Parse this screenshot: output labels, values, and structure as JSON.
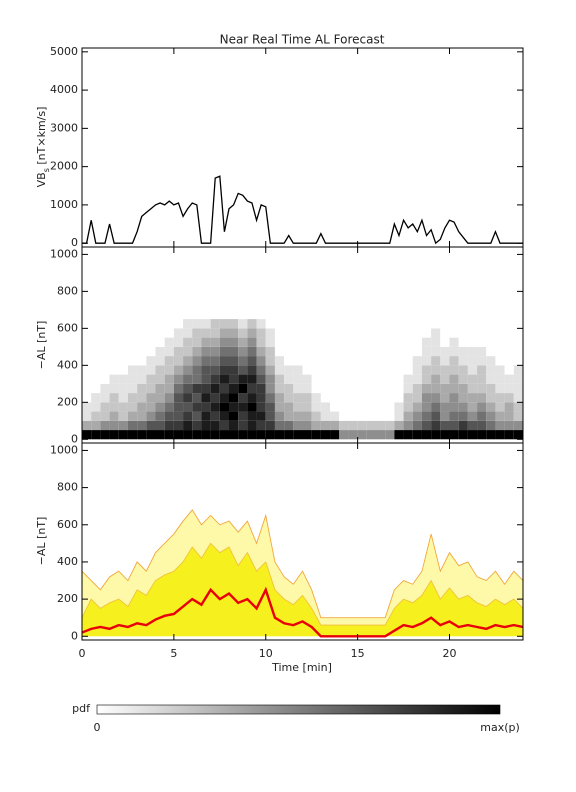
{
  "chart_data": [
    {
      "type": "line",
      "title": "Near Real Time AL Forecast",
      "ylabel": {
        "main": "VB",
        "sub": "s",
        "rest": " [nT×km/s]"
      },
      "color": "#000000",
      "xlim": [
        0,
        24
      ],
      "ylim": [
        -100,
        5100
      ],
      "yticks": [
        0,
        1000,
        2000,
        3000,
        4000,
        5000
      ],
      "x": [
        0,
        0.25,
        0.5,
        0.75,
        1,
        1.25,
        1.5,
        1.75,
        2,
        2.25,
        2.5,
        2.75,
        3,
        3.25,
        3.5,
        3.75,
        4,
        4.25,
        4.5,
        4.75,
        5,
        5.25,
        5.5,
        5.75,
        6,
        6.25,
        6.5,
        6.75,
        7,
        7.25,
        7.5,
        7.75,
        8,
        8.25,
        8.5,
        8.75,
        9,
        9.25,
        9.5,
        9.75,
        10,
        10.25,
        10.5,
        10.75,
        11,
        11.25,
        11.5,
        11.75,
        12,
        12.25,
        12.5,
        12.75,
        13,
        13.25,
        13.5,
        13.75,
        14,
        14.25,
        14.5,
        14.75,
        15,
        15.25,
        15.5,
        15.75,
        16,
        16.25,
        16.5,
        16.75,
        17,
        17.25,
        17.5,
        17.75,
        18,
        18.25,
        18.5,
        18.75,
        19,
        19.25,
        19.5,
        19.75,
        20,
        20.25,
        20.5,
        20.75,
        21,
        21.25,
        21.5,
        21.75,
        22,
        22.25,
        22.5,
        22.75,
        23,
        23.25,
        23.5,
        23.75,
        24
      ],
      "values": [
        0,
        0,
        600,
        0,
        0,
        0,
        500,
        0,
        0,
        0,
        0,
        0,
        300,
        700,
        800,
        900,
        1000,
        1050,
        1000,
        1100,
        1000,
        1050,
        700,
        900,
        1050,
        1000,
        0,
        0,
        0,
        1700,
        1750,
        300,
        900,
        1000,
        1300,
        1250,
        1100,
        1050,
        600,
        1000,
        950,
        0,
        0,
        0,
        0,
        200,
        0,
        0,
        0,
        0,
        0,
        0,
        250,
        0,
        0,
        0,
        0,
        0,
        0,
        0,
        0,
        0,
        0,
        0,
        0,
        0,
        0,
        0,
        500,
        200,
        600,
        400,
        500,
        300,
        600,
        200,
        350,
        0,
        100,
        400,
        600,
        550,
        300,
        150,
        0,
        0,
        0,
        0,
        0,
        0,
        300,
        0,
        0,
        0,
        0,
        0,
        0
      ]
    },
    {
      "type": "heatmap",
      "ylabel": "−AL [nT]",
      "colormap": "gray-reversed",
      "xlim": [
        0,
        24
      ],
      "ylim": [
        -20,
        1040
      ],
      "yticks": [
        0,
        200,
        400,
        600,
        800,
        1000
      ],
      "xbins": [
        0,
        0.5,
        1,
        1.5,
        2,
        2.5,
        3,
        3.5,
        4,
        4.5,
        5,
        5.5,
        6,
        6.5,
        7,
        7.5,
        8,
        8.5,
        9,
        9.5,
        10,
        10.5,
        11,
        11.5,
        12,
        12.5,
        13,
        13.5,
        14,
        14.5,
        15,
        15.5,
        16,
        16.5,
        17,
        17.5,
        18,
        18.5,
        19,
        19.5,
        20,
        20.5,
        21,
        21.5,
        22,
        22.5,
        23,
        23.5,
        24
      ],
      "ybins": [
        0,
        50,
        100,
        150,
        200,
        250,
        300,
        350,
        400,
        450,
        500,
        550,
        600,
        650
      ],
      "z": [
        [
          9,
          9,
          9,
          9,
          9,
          9,
          9,
          9,
          9,
          9,
          9,
          9,
          9,
          9,
          9,
          9,
          9,
          9,
          9,
          9,
          9,
          9,
          9,
          9,
          9,
          9,
          9,
          9,
          4,
          4,
          4,
          4,
          4,
          4,
          9,
          9,
          9,
          9,
          9,
          9,
          9,
          9,
          9,
          9,
          9,
          9,
          9,
          9
        ],
        [
          3,
          3,
          4,
          4,
          4,
          5,
          5,
          6,
          6,
          7,
          7,
          8,
          7,
          8,
          8,
          7,
          8,
          7,
          8,
          7,
          7,
          5,
          5,
          4,
          4,
          3,
          3,
          3,
          2,
          2,
          2,
          2,
          2,
          2,
          3,
          4,
          5,
          6,
          7,
          6,
          6,
          7,
          6,
          6,
          5,
          4,
          4,
          4
        ],
        [
          1,
          2,
          2,
          3,
          2,
          3,
          3,
          4,
          5,
          6,
          6,
          7,
          6,
          8,
          7,
          8,
          9,
          7,
          8,
          8,
          6,
          4,
          3,
          3,
          3,
          2,
          1,
          1,
          0,
          0,
          0,
          0,
          0,
          0,
          1,
          3,
          4,
          5,
          6,
          4,
          5,
          5,
          4,
          5,
          4,
          3,
          3,
          2
        ],
        [
          1,
          1,
          2,
          2,
          2,
          2,
          3,
          3,
          4,
          5,
          6,
          6,
          7,
          7,
          8,
          9,
          8,
          8,
          9,
          7,
          6,
          3,
          3,
          2,
          2,
          1,
          1,
          0,
          0,
          0,
          0,
          0,
          0,
          0,
          1,
          2,
          3,
          4,
          5,
          4,
          4,
          4,
          3,
          4,
          3,
          2,
          3,
          2
        ],
        [
          0,
          1,
          1,
          2,
          1,
          2,
          2,
          3,
          3,
          4,
          6,
          7,
          6,
          8,
          7,
          8,
          9,
          7,
          8,
          7,
          5,
          3,
          2,
          2,
          2,
          1,
          0,
          0,
          0,
          0,
          0,
          0,
          0,
          0,
          0,
          2,
          2,
          4,
          4,
          3,
          4,
          3,
          3,
          3,
          2,
          2,
          2,
          1
        ],
        [
          0,
          0,
          1,
          1,
          1,
          1,
          2,
          2,
          3,
          3,
          5,
          6,
          7,
          7,
          8,
          7,
          8,
          9,
          7,
          7,
          4,
          2,
          2,
          1,
          1,
          0,
          0,
          0,
          0,
          0,
          0,
          0,
          0,
          0,
          0,
          1,
          2,
          3,
          3,
          3,
          3,
          3,
          2,
          2,
          2,
          1,
          1,
          1
        ],
        [
          0,
          0,
          0,
          1,
          1,
          1,
          1,
          2,
          2,
          3,
          4,
          5,
          5,
          6,
          7,
          8,
          7,
          8,
          8,
          6,
          4,
          2,
          1,
          1,
          1,
          0,
          0,
          0,
          0,
          0,
          0,
          0,
          0,
          0,
          0,
          1,
          1,
          2,
          3,
          2,
          3,
          2,
          2,
          2,
          1,
          1,
          1,
          1
        ],
        [
          0,
          0,
          0,
          0,
          0,
          1,
          1,
          1,
          2,
          2,
          3,
          4,
          5,
          6,
          6,
          7,
          7,
          6,
          7,
          5,
          3,
          1,
          1,
          1,
          0,
          0,
          0,
          0,
          0,
          0,
          0,
          0,
          0,
          0,
          0,
          0,
          1,
          2,
          2,
          2,
          2,
          2,
          1,
          2,
          1,
          1,
          0,
          1
        ],
        [
          0,
          0,
          0,
          0,
          0,
          0,
          0,
          1,
          1,
          2,
          2,
          3,
          4,
          5,
          5,
          6,
          6,
          5,
          6,
          4,
          2,
          1,
          0,
          0,
          0,
          0,
          0,
          0,
          0,
          0,
          0,
          0,
          0,
          0,
          0,
          0,
          1,
          1,
          2,
          1,
          2,
          1,
          1,
          1,
          1,
          0,
          0,
          0
        ],
        [
          0,
          0,
          0,
          0,
          0,
          0,
          0,
          0,
          1,
          1,
          2,
          2,
          3,
          4,
          4,
          5,
          5,
          4,
          5,
          3,
          2,
          0,
          0,
          0,
          0,
          0,
          0,
          0,
          0,
          0,
          0,
          0,
          0,
          0,
          0,
          0,
          0,
          1,
          1,
          1,
          1,
          1,
          1,
          1,
          0,
          0,
          0,
          0
        ],
        [
          0,
          0,
          0,
          0,
          0,
          0,
          0,
          0,
          0,
          1,
          1,
          2,
          2,
          3,
          3,
          4,
          4,
          3,
          4,
          2,
          1,
          0,
          0,
          0,
          0,
          0,
          0,
          0,
          0,
          0,
          0,
          0,
          0,
          0,
          0,
          0,
          0,
          1,
          1,
          0,
          1,
          0,
          0,
          0,
          0,
          0,
          0,
          0
        ],
        [
          0,
          0,
          0,
          0,
          0,
          0,
          0,
          0,
          0,
          0,
          1,
          1,
          2,
          2,
          2,
          3,
          3,
          2,
          3,
          2,
          1,
          0,
          0,
          0,
          0,
          0,
          0,
          0,
          0,
          0,
          0,
          0,
          0,
          0,
          0,
          0,
          0,
          0,
          1,
          0,
          0,
          0,
          0,
          0,
          0,
          0,
          0,
          0
        ],
        [
          0,
          0,
          0,
          0,
          0,
          0,
          0,
          0,
          0,
          0,
          0,
          1,
          1,
          1,
          2,
          2,
          2,
          1,
          2,
          1,
          0,
          0,
          0,
          0,
          0,
          0,
          0,
          0,
          0,
          0,
          0,
          0,
          0,
          0,
          0,
          0,
          0,
          0,
          0,
          0,
          0,
          0,
          0,
          0,
          0,
          0,
          0,
          0
        ]
      ]
    },
    {
      "type": "band",
      "ylabel": "−AL [nT]",
      "xlabel": "Time [min]",
      "xlim": [
        0,
        24
      ],
      "xticks": [
        0,
        5,
        10,
        15,
        20
      ],
      "ylim": [
        -20,
        1040
      ],
      "yticks": [
        0,
        200,
        400,
        600,
        800,
        1000
      ],
      "x": [
        0,
        0.5,
        1,
        1.5,
        2,
        2.5,
        3,
        3.5,
        4,
        4.5,
        5,
        5.5,
        6,
        6.5,
        7,
        7.5,
        8,
        8.5,
        9,
        9.5,
        10,
        10.5,
        11,
        11.5,
        12,
        12.5,
        13,
        13.5,
        14,
        14.5,
        15,
        15.5,
        16,
        16.5,
        17,
        17.5,
        18,
        18.5,
        19,
        19.5,
        20,
        20.5,
        21,
        21.5,
        22,
        22.5,
        23,
        23.5,
        24
      ],
      "series": [
        {
          "color": "#fdf9a8",
          "edge_color": "#f2a63a",
          "values": [
            350,
            300,
            250,
            320,
            350,
            300,
            400,
            350,
            450,
            500,
            550,
            620,
            680,
            600,
            650,
            600,
            620,
            560,
            620,
            500,
            650,
            400,
            320,
            280,
            350,
            250,
            100,
            100,
            100,
            100,
            100,
            100,
            100,
            100,
            250,
            300,
            280,
            350,
            550,
            350,
            450,
            380,
            400,
            320,
            300,
            350,
            280,
            350,
            300
          ]
        },
        {
          "color": "#f6f01e",
          "edge_color": "#f2c23a",
          "values": [
            100,
            200,
            150,
            180,
            200,
            160,
            250,
            220,
            300,
            330,
            350,
            400,
            480,
            420,
            500,
            450,
            480,
            380,
            450,
            350,
            400,
            250,
            200,
            170,
            220,
            150,
            60,
            60,
            60,
            60,
            60,
            60,
            60,
            60,
            150,
            200,
            180,
            220,
            300,
            200,
            260,
            200,
            220,
            180,
            160,
            200,
            170,
            200,
            150
          ]
        },
        {
          "color": "#e8000b",
          "values": [
            20,
            40,
            50,
            40,
            60,
            50,
            70,
            60,
            90,
            110,
            120,
            160,
            200,
            170,
            250,
            200,
            230,
            180,
            200,
            150,
            250,
            100,
            70,
            60,
            80,
            50,
            0,
            0,
            0,
            0,
            0,
            0,
            0,
            0,
            30,
            60,
            50,
            70,
            100,
            60,
            80,
            50,
            60,
            50,
            40,
            60,
            50,
            60,
            50
          ]
        }
      ]
    }
  ],
  "colorbar": {
    "label": "pdf",
    "min_label": "0",
    "max_label": "max(p)"
  }
}
